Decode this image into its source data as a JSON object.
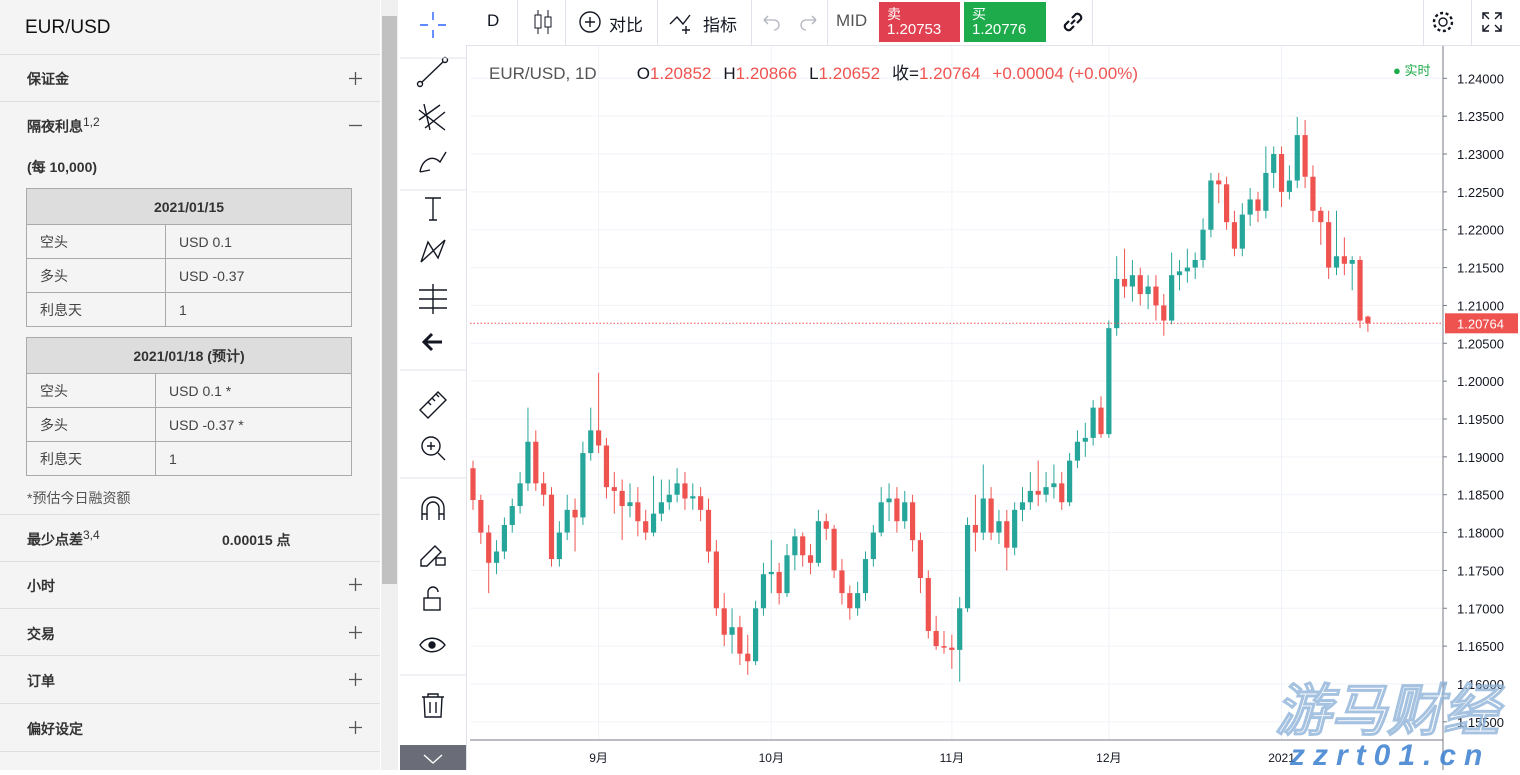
{
  "panel": {
    "symbol": "EUR/USD",
    "margin": "保证金",
    "swap": {
      "title": "隔夜利息",
      "sup": "1,2",
      "unit": "(每 10,000)",
      "tables": [
        {
          "header": "2021/01/15",
          "rows": [
            [
              "空头",
              "USD 0.1"
            ],
            [
              "多头",
              "USD -0.37"
            ],
            [
              "利息天",
              "1"
            ]
          ]
        },
        {
          "header": "2021/01/18 (预计)",
          "rows": [
            [
              "空头",
              "USD 0.1 *"
            ],
            [
              "多头",
              "USD -0.37 *"
            ],
            [
              "利息天",
              "1"
            ]
          ]
        }
      ],
      "note": "*预估今日融资额"
    },
    "spread": {
      "label": "最少点差",
      "sup": "3,4",
      "value": "0.00015 点"
    },
    "sections": [
      "小时",
      "交易",
      "订单",
      "偏好设定"
    ]
  },
  "toolbar": {
    "interval": "D",
    "compare": "对比",
    "indicators": "指标",
    "mid": "MID",
    "sell": {
      "label": "卖",
      "price": "1.20753"
    },
    "buy": {
      "label": "买",
      "price": "1.20776"
    }
  },
  "watermark": {
    "name": "游马财经",
    "url": "zzrt01.cn"
  },
  "chart_data": {
    "type": "candlestick",
    "title": "EUR/USD, 1D",
    "ohlc_labels": [
      "O",
      "H",
      "L",
      "收="
    ],
    "change": "+0.00004 (+0.00%)",
    "status": "实时",
    "up_color": "#26a69a",
    "down_color": "#ef5350",
    "grid": true,
    "ylim": [
      1.1526,
      1.2444
    ],
    "yticks": [
      {
        "value": 1.155,
        "label": "1.15500"
      },
      {
        "value": 1.16,
        "label": "1.16000"
      },
      {
        "value": 1.165,
        "label": "1.16500"
      },
      {
        "value": 1.17,
        "label": "1.17000"
      },
      {
        "value": 1.175,
        "label": "1.17500"
      },
      {
        "value": 1.18,
        "label": "1.18000"
      },
      {
        "value": 1.185,
        "label": "1.18500"
      },
      {
        "value": 1.19,
        "label": "1.19000"
      },
      {
        "value": 1.195,
        "label": "1.19500"
      },
      {
        "value": 1.2,
        "label": "1.20000"
      },
      {
        "value": 1.205,
        "label": "1.20500"
      },
      {
        "value": 1.21,
        "label": "1.21000"
      },
      {
        "value": 1.215,
        "label": "1.21500"
      },
      {
        "value": 1.22,
        "label": "1.22000"
      },
      {
        "value": 1.225,
        "label": "1.22500"
      },
      {
        "value": 1.23,
        "label": "1.23000"
      },
      {
        "value": 1.235,
        "label": "1.23500"
      },
      {
        "value": 1.24,
        "label": "1.24000"
      }
    ],
    "categories": [
      null,
      null,
      null,
      null,
      null,
      null,
      null,
      null,
      null,
      null,
      null,
      null,
      null,
      null,
      null,
      null,
      "9月",
      null,
      null,
      null,
      null,
      null,
      null,
      null,
      null,
      null,
      null,
      null,
      null,
      null,
      null,
      null,
      null,
      null,
      null,
      null,
      null,
      null,
      "10月",
      null,
      null,
      null,
      null,
      null,
      null,
      null,
      null,
      null,
      null,
      null,
      null,
      null,
      null,
      null,
      null,
      null,
      null,
      null,
      null,
      null,
      null,
      "11月",
      null,
      null,
      null,
      null,
      null,
      null,
      null,
      null,
      null,
      null,
      null,
      null,
      null,
      null,
      null,
      null,
      null,
      null,
      null,
      "12月",
      null,
      null,
      null,
      null,
      null,
      null,
      null,
      null,
      null,
      null,
      null,
      null,
      null,
      null,
      null,
      null,
      null,
      null,
      null,
      null,
      null,
      "2021",
      null,
      null,
      null,
      null,
      null,
      null,
      null,
      null,
      null,
      null,
      null
    ],
    "ohlc": [
      [
        1.1885,
        1.1895,
        1.183,
        1.1843
      ],
      [
        1.1843,
        1.185,
        1.1785,
        1.18
      ],
      [
        1.18,
        1.181,
        1.172,
        1.176
      ],
      [
        1.176,
        1.179,
        1.1745,
        1.1775
      ],
      [
        1.1775,
        1.182,
        1.1765,
        1.181
      ],
      [
        1.181,
        1.1845,
        1.18,
        1.1835
      ],
      [
        1.1835,
        1.188,
        1.1825,
        1.1865
      ],
      [
        1.1865,
        1.1965,
        1.1855,
        1.192
      ],
      [
        1.192,
        1.1935,
        1.1855,
        1.1865
      ],
      [
        1.1865,
        1.188,
        1.1835,
        1.185
      ],
      [
        1.185,
        1.186,
        1.1755,
        1.1765
      ],
      [
        1.1765,
        1.1815,
        1.1755,
        1.18
      ],
      [
        1.18,
        1.185,
        1.179,
        1.183
      ],
      [
        1.183,
        1.1845,
        1.1775,
        1.182
      ],
      [
        1.182,
        1.192,
        1.181,
        1.1905
      ],
      [
        1.1905,
        1.1965,
        1.1895,
        1.1935
      ],
      [
        1.1935,
        1.2011,
        1.1905,
        1.1915
      ],
      [
        1.1915,
        1.1925,
        1.1845,
        1.186
      ],
      [
        1.186,
        1.188,
        1.1825,
        1.1855
      ],
      [
        1.1855,
        1.187,
        1.179,
        1.1835
      ],
      [
        1.1835,
        1.1865,
        1.182,
        1.184
      ],
      [
        1.184,
        1.186,
        1.1795,
        1.1815
      ],
      [
        1.1815,
        1.183,
        1.179,
        1.18
      ],
      [
        1.18,
        1.1875,
        1.1795,
        1.1825
      ],
      [
        1.1825,
        1.187,
        1.1815,
        1.184
      ],
      [
        1.184,
        1.187,
        1.183,
        1.185
      ],
      [
        1.185,
        1.1885,
        1.184,
        1.1865
      ],
      [
        1.1865,
        1.188,
        1.183,
        1.1845
      ],
      [
        1.1845,
        1.1865,
        1.183,
        1.1848
      ],
      [
        1.1848,
        1.186,
        1.1815,
        1.183
      ],
      [
        1.183,
        1.1845,
        1.176,
        1.1775
      ],
      [
        1.1775,
        1.179,
        1.169,
        1.17
      ],
      [
        1.17,
        1.172,
        1.165,
        1.1665
      ],
      [
        1.1665,
        1.17,
        1.164,
        1.1675
      ],
      [
        1.1675,
        1.169,
        1.1625,
        1.164
      ],
      [
        1.164,
        1.1665,
        1.1612,
        1.163
      ],
      [
        1.163,
        1.171,
        1.1625,
        1.17
      ],
      [
        1.17,
        1.176,
        1.169,
        1.1745
      ],
      [
        1.1745,
        1.179,
        1.172,
        1.1748
      ],
      [
        1.1748,
        1.176,
        1.1705,
        1.172
      ],
      [
        1.172,
        1.1785,
        1.1715,
        1.177
      ],
      [
        1.177,
        1.1805,
        1.175,
        1.1795
      ],
      [
        1.1795,
        1.18,
        1.1755,
        1.177
      ],
      [
        1.177,
        1.1785,
        1.1745,
        1.176
      ],
      [
        1.176,
        1.183,
        1.1755,
        1.1815
      ],
      [
        1.1815,
        1.1825,
        1.179,
        1.1805
      ],
      [
        1.1805,
        1.181,
        1.174,
        1.175
      ],
      [
        1.175,
        1.1765,
        1.1705,
        1.172
      ],
      [
        1.172,
        1.173,
        1.1685,
        1.17
      ],
      [
        1.17,
        1.1735,
        1.169,
        1.172
      ],
      [
        1.172,
        1.1775,
        1.171,
        1.1765
      ],
      [
        1.1765,
        1.181,
        1.1755,
        1.18
      ],
      [
        1.18,
        1.186,
        1.1795,
        1.184
      ],
      [
        1.184,
        1.1865,
        1.1815,
        1.1845
      ],
      [
        1.1845,
        1.186,
        1.18,
        1.1815
      ],
      [
        1.1815,
        1.1855,
        1.1805,
        1.184
      ],
      [
        1.184,
        1.185,
        1.1775,
        1.179
      ],
      [
        1.179,
        1.18,
        1.172,
        1.174
      ],
      [
        1.174,
        1.175,
        1.166,
        1.167
      ],
      [
        1.167,
        1.169,
        1.1645,
        1.165
      ],
      [
        1.165,
        1.167,
        1.164,
        1.1648
      ],
      [
        1.1648,
        1.1665,
        1.162,
        1.1645
      ],
      [
        1.1645,
        1.1715,
        1.1603,
        1.17
      ],
      [
        1.17,
        1.182,
        1.1695,
        1.181
      ],
      [
        1.181,
        1.185,
        1.1775,
        1.18
      ],
      [
        1.18,
        1.189,
        1.179,
        1.1845
      ],
      [
        1.1845,
        1.186,
        1.179,
        1.18
      ],
      [
        1.18,
        1.183,
        1.1785,
        1.1815
      ],
      [
        1.1815,
        1.183,
        1.175,
        1.178
      ],
      [
        1.178,
        1.184,
        1.177,
        1.183
      ],
      [
        1.183,
        1.186,
        1.1815,
        1.184
      ],
      [
        1.184,
        1.188,
        1.183,
        1.1855
      ],
      [
        1.1855,
        1.1895,
        1.1835,
        1.185
      ],
      [
        1.185,
        1.188,
        1.184,
        1.186
      ],
      [
        1.186,
        1.189,
        1.1845,
        1.1865
      ],
      [
        1.1865,
        1.188,
        1.183,
        1.184
      ],
      [
        1.184,
        1.1905,
        1.1835,
        1.1895
      ],
      [
        1.1895,
        1.1935,
        1.1885,
        1.192
      ],
      [
        1.192,
        1.1945,
        1.19,
        1.1925
      ],
      [
        1.1925,
        1.1975,
        1.1915,
        1.1965
      ],
      [
        1.1965,
        1.198,
        1.1925,
        1.193
      ],
      [
        1.193,
        1.208,
        1.1925,
        1.207
      ],
      [
        1.207,
        1.2165,
        1.206,
        1.2135
      ],
      [
        1.2135,
        1.2175,
        1.211,
        1.2125
      ],
      [
        1.2125,
        1.216,
        1.2105,
        1.214
      ],
      [
        1.214,
        1.215,
        1.21,
        1.2115
      ],
      [
        1.2115,
        1.214,
        1.2095,
        1.2125
      ],
      [
        1.2125,
        1.214,
        1.208,
        1.21
      ],
      [
        1.21,
        1.2115,
        1.206,
        1.208
      ],
      [
        1.208,
        1.217,
        1.2075,
        1.214
      ],
      [
        1.214,
        1.216,
        1.212,
        1.2145
      ],
      [
        1.2145,
        1.2175,
        1.213,
        1.215
      ],
      [
        1.215,
        1.217,
        1.2135,
        1.216
      ],
      [
        1.216,
        1.2215,
        1.215,
        1.22
      ],
      [
        1.22,
        1.2275,
        1.219,
        1.2265
      ],
      [
        1.2265,
        1.2275,
        1.2235,
        1.226
      ],
      [
        1.226,
        1.227,
        1.22,
        1.221
      ],
      [
        1.221,
        1.2225,
        1.2165,
        1.2175
      ],
      [
        1.2175,
        1.2235,
        1.2165,
        1.222
      ],
      [
        1.222,
        1.2255,
        1.2205,
        1.224
      ],
      [
        1.224,
        1.225,
        1.221,
        1.2225
      ],
      [
        1.2225,
        1.231,
        1.2215,
        1.2275
      ],
      [
        1.2275,
        1.231,
        1.2255,
        1.23
      ],
      [
        1.23,
        1.231,
        1.223,
        1.225
      ],
      [
        1.225,
        1.2285,
        1.224,
        1.2265
      ],
      [
        1.2265,
        1.2349,
        1.2255,
        1.2325
      ],
      [
        1.2325,
        1.2345,
        1.2255,
        1.227
      ],
      [
        1.227,
        1.2285,
        1.221,
        1.2225
      ],
      [
        1.2225,
        1.223,
        1.218,
        1.221
      ],
      [
        1.221,
        1.2225,
        1.2135,
        1.215
      ],
      [
        1.215,
        1.2225,
        1.214,
        1.2165
      ],
      [
        1.2165,
        1.219,
        1.214,
        1.2155
      ],
      [
        1.2155,
        1.2165,
        1.212,
        1.216
      ],
      [
        1.216,
        1.2165,
        1.207,
        1.208
      ],
      [
        1.20852,
        1.20866,
        1.20652,
        1.20764
      ]
    ]
  }
}
